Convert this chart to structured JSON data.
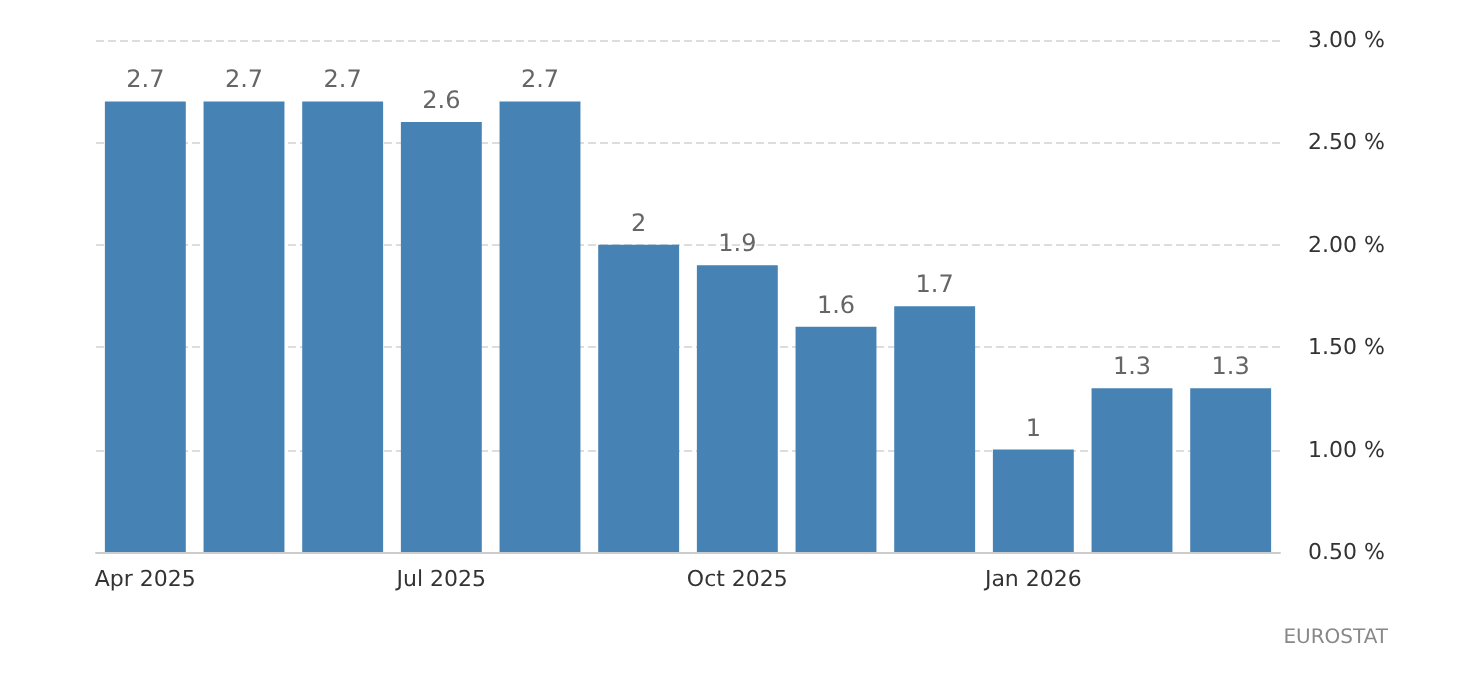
{
  "chart_data": {
    "type": "bar",
    "categories": [
      "Apr 2025",
      null,
      null,
      "Jul 2025",
      null,
      null,
      "Oct 2025",
      null,
      null,
      "Jan 2026",
      null,
      null
    ],
    "values": [
      2.7,
      2.7,
      2.7,
      2.6,
      2.7,
      2,
      1.9,
      1.6,
      1.7,
      1,
      1.3,
      1.3
    ],
    "color": "#4682b4",
    "ylim": [
      0.5,
      3
    ],
    "yticks": [
      {
        "value": 0.5,
        "label": "0.50 %"
      },
      {
        "value": 1,
        "label": "1.00 %"
      },
      {
        "value": 1.5,
        "label": "1.50 %"
      },
      {
        "value": 2,
        "label": "2.00 %"
      },
      {
        "value": 2.5,
        "label": "2.50 %"
      },
      {
        "value": 3,
        "label": "3.00 %"
      }
    ],
    "grid": "y",
    "data_labels": true,
    "annotations": [
      "EUROSTAT"
    ]
  }
}
